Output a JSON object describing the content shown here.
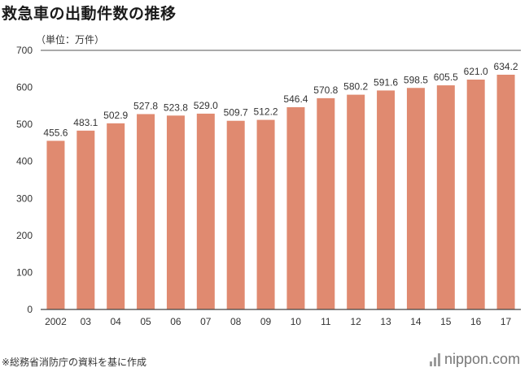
{
  "page": {
    "title": "救急車の出動件数の推移",
    "unit": "（単位：万件）",
    "source": "※総務省消防庁の資料を基に作成",
    "logo": "nippon.com"
  },
  "colors": {
    "bar": "#e08a70",
    "axis": "#444444",
    "text": "#333333"
  },
  "chart_data": {
    "type": "bar",
    "title": "救急車の出動件数の推移",
    "ylabel": "（単位：万件）",
    "xlabel": "",
    "ylim": [
      0,
      700
    ],
    "yticks": [
      0,
      100,
      200,
      300,
      400,
      500,
      600,
      700
    ],
    "grid": false,
    "categories": [
      "2002",
      "03",
      "04",
      "05",
      "06",
      "07",
      "08",
      "09",
      "10",
      "11",
      "12",
      "13",
      "14",
      "15",
      "16",
      "17"
    ],
    "values": [
      455.6,
      483.1,
      502.9,
      527.8,
      523.8,
      529.0,
      509.7,
      512.2,
      546.4,
      570.8,
      580.2,
      591.6,
      598.5,
      605.5,
      621.0,
      634.2
    ],
    "value_labels": [
      "455.6",
      "483.1",
      "502.9",
      "527.8",
      "523.8",
      "529.0",
      "509.7",
      "512.2",
      "546.4",
      "570.8",
      "580.2",
      "591.6",
      "598.5",
      "605.5",
      "621.0",
      "634.2"
    ]
  }
}
